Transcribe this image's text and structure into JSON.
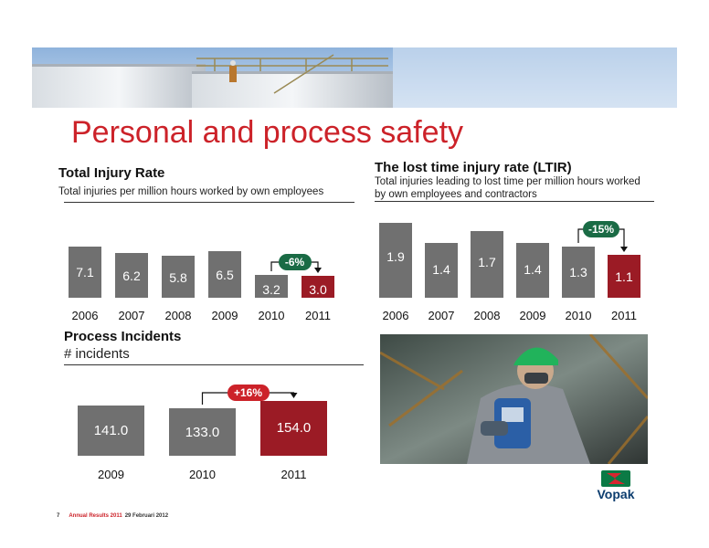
{
  "title": "Personal and process safety",
  "colors": {
    "bar_grey": "#707070",
    "bar_red": "#9b1b25",
    "accent_red": "#cc2229",
    "pill_green": "#1a6b45"
  },
  "footer": {
    "page": "7",
    "text": "Annual Results 2011",
    "date": "29 Februari 2012"
  },
  "logo": {
    "text": "Vopak"
  },
  "chart_data": [
    {
      "type": "bar",
      "title": "Total Injury Rate",
      "subtitle": "Total injuries per million hours worked by own employees",
      "categories": [
        "2006",
        "2007",
        "2008",
        "2009",
        "2010",
        "2011"
      ],
      "values": [
        7.1,
        6.2,
        5.8,
        6.5,
        3.2,
        3.0
      ],
      "labels": [
        "7.1",
        "6.2",
        "5.8",
        "6.5",
        "3.2",
        "3.0"
      ],
      "highlight_index": 5,
      "annotation": "-6%",
      "annotation_color": "green",
      "annotation_from": 4,
      "annotation_to": 5
    },
    {
      "type": "bar",
      "title": "The lost time injury rate (LTIR)",
      "subtitle_lines": [
        "Total injuries leading to lost time per million hours worked",
        "by own employees and contractors"
      ],
      "categories": [
        "2006",
        "2007",
        "2008",
        "2009",
        "2010",
        "2011"
      ],
      "values": [
        1.9,
        1.4,
        1.7,
        1.4,
        1.3,
        1.1
      ],
      "labels": [
        "1.9",
        "1.4",
        "1.7",
        "1.4",
        "1.3",
        "1.1"
      ],
      "highlight_index": 5,
      "annotation": "-15%",
      "annotation_color": "green",
      "annotation_from": 4,
      "annotation_to": 5
    },
    {
      "type": "bar",
      "title": "Process Incidents",
      "subtitle": "# incidents",
      "categories": [
        "2009",
        "2010",
        "2011"
      ],
      "values": [
        141.0,
        133.0,
        154.0
      ],
      "labels": [
        "141.0",
        "133.0",
        "154.0"
      ],
      "highlight_index": 2,
      "annotation": "+16%",
      "annotation_color": "red",
      "annotation_from": 1,
      "annotation_to": 2
    }
  ]
}
